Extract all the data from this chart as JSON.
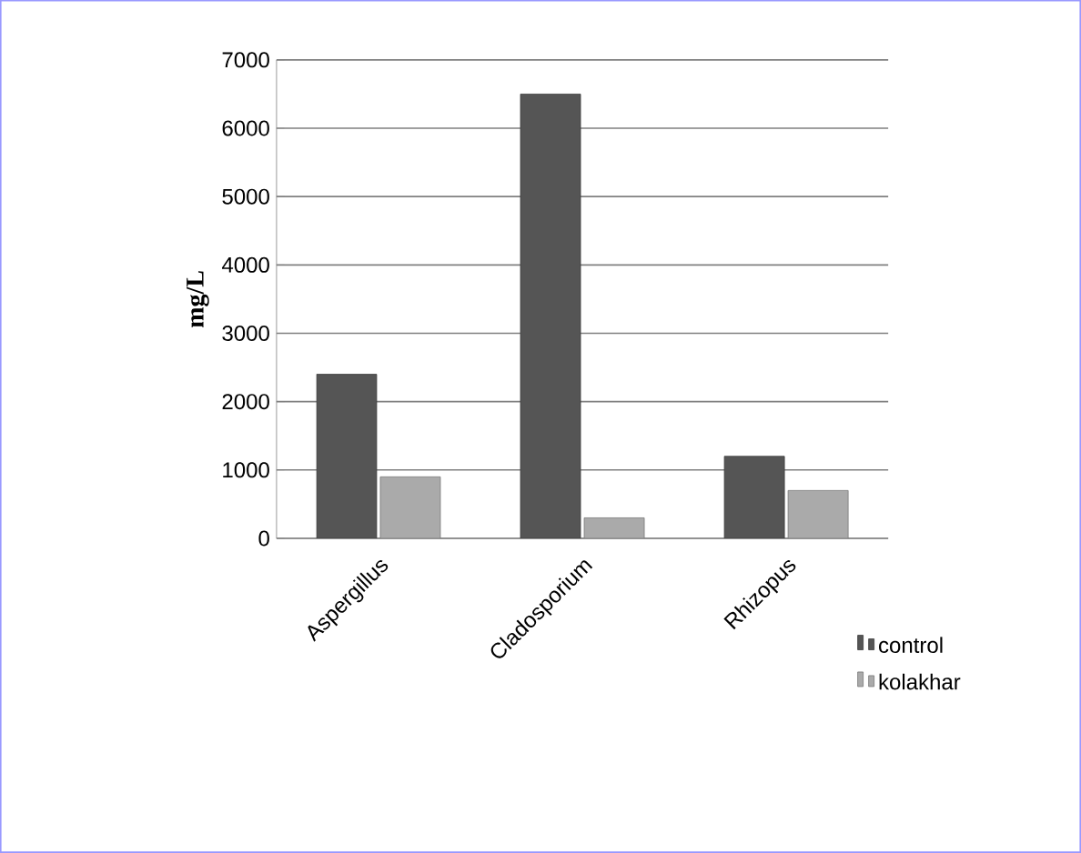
{
  "chart_data": {
    "type": "bar",
    "ylabel": "mg/L",
    "categories": [
      "Aspergillus",
      "Cladosporium",
      "Rhizopus"
    ],
    "series": [
      {
        "name": "control",
        "color": "#555555",
        "values": [
          2400,
          6500,
          1200
        ]
      },
      {
        "name": "kolakhar",
        "color": "#aaaaaa",
        "values": [
          900,
          300,
          700
        ]
      }
    ],
    "ylim": [
      0,
      7000
    ],
    "yticks": [
      0,
      1000,
      2000,
      3000,
      4000,
      5000,
      6000,
      7000
    ],
    "grid": "y",
    "legend": "bottom right"
  }
}
